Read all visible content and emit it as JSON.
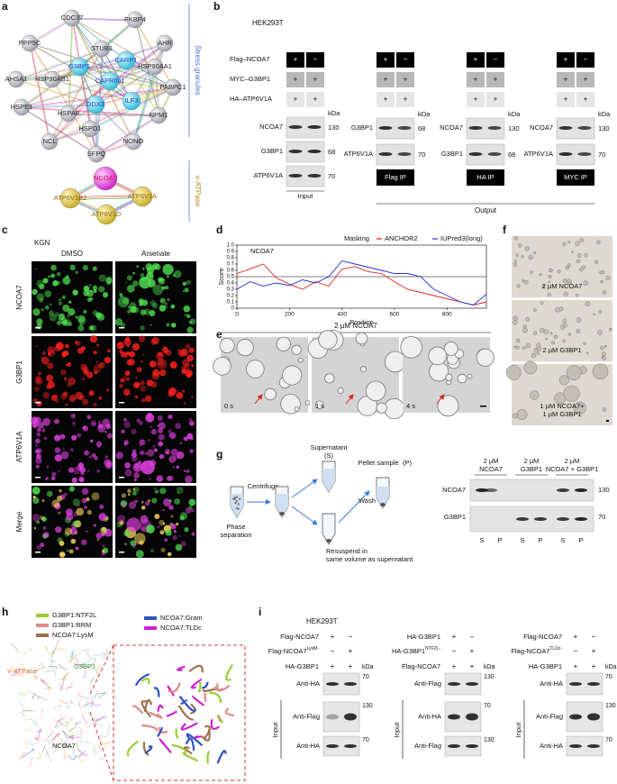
{
  "a": {
    "label": "a",
    "nodes": [
      "CDC37",
      "FKBP4",
      "PPP5C",
      "STUB1",
      "AHR",
      "G3BP1",
      "CARP1",
      "HSP90AA1",
      "AHSA1",
      "HSP90AB1",
      "CAPRIN1",
      "PABPC1",
      "HSPE1",
      "DDX3",
      "ILF3",
      "HSPA8",
      "NPM1",
      "HSPD1",
      "NCL",
      "NONO",
      "SFPQ",
      "NCOA7",
      "ATP6V1B2",
      "ATP6V1A",
      "ATP6V1D"
    ],
    "groups": [
      "Stress granules",
      "v-ATPase"
    ]
  },
  "b": {
    "label": "b",
    "cell_line": "HEK293T",
    "constructs": [
      "Flag–NCOA7",
      "MYC–G3BP1",
      "HA–ATP6V1A"
    ],
    "signs": [
      [
        "+",
        "−"
      ],
      [
        "+",
        "+"
      ],
      [
        "+",
        "+"
      ]
    ],
    "kda": "kDa",
    "blots": [
      {
        "name": "Input",
        "proteins": [
          "NCOA7",
          "G3BP1",
          "ATP6V1A"
        ],
        "sizes": [
          130,
          68,
          70
        ]
      },
      {
        "name": "Flag IP",
        "proteins": [
          "G3BP1",
          "ATP6V1A"
        ],
        "sizes": [
          68,
          70
        ]
      },
      {
        "name": "HA IP",
        "proteins": [
          "NCOA7",
          "G3BP1"
        ],
        "sizes": [
          130,
          68
        ]
      },
      {
        "name": "MYC IP",
        "proteins": [
          "NCOA7",
          "ATP6V1A"
        ],
        "sizes": [
          130,
          70
        ]
      }
    ],
    "output": "Output"
  },
  "c": {
    "label": "c",
    "cell_line": "KGN",
    "conditions": [
      "DMSO",
      "Arsenate"
    ],
    "channels": [
      "NCOA7",
      "G3BP1",
      "ATP6V1A",
      "Merge"
    ]
  },
  "d": {
    "label": "d",
    "type": "line",
    "protein": "NCOA7",
    "legend_title": "Masking",
    "xlabel": "Position",
    "ylabel": "Score",
    "x": [
      0,
      50,
      100,
      150,
      200,
      250,
      300,
      350,
      400,
      450,
      500,
      550,
      600,
      650,
      700,
      750,
      800,
      850,
      900,
      950
    ],
    "series": [
      {
        "name": "ANCHOR2",
        "color": "#e0201c",
        "values": [
          0.55,
          0.62,
          0.7,
          0.48,
          0.38,
          0.3,
          0.42,
          0.35,
          0.62,
          0.66,
          0.58,
          0.55,
          0.42,
          0.3,
          0.25,
          0.2,
          0.15,
          0.1,
          0.05,
          0.1
        ]
      },
      {
        "name": "IUPred3(long)",
        "color": "#1f2fd0",
        "values": [
          0.3,
          0.42,
          0.35,
          0.4,
          0.36,
          0.45,
          0.4,
          0.5,
          0.75,
          0.7,
          0.65,
          0.6,
          0.55,
          0.55,
          0.5,
          0.3,
          0.2,
          0.1,
          0.05,
          0.22
        ]
      }
    ],
    "threshold": 0.5,
    "xlim": [
      0,
      950
    ],
    "ylim": [
      0,
      1.0
    ],
    "xticks": [
      0,
      200,
      400,
      600,
      800
    ],
    "yticks": [
      0,
      0.1,
      0.2,
      0.3,
      0.4,
      0.5,
      0.6,
      0.7,
      0.8,
      0.9,
      {
        "value": 1.0,
        "label": "1.0"
      }
    ]
  },
  "e": {
    "label": "e",
    "title": "2 µM NCOA7",
    "times": [
      "0 s",
      "1 s",
      "4 s"
    ]
  },
  "f": {
    "label": "f",
    "conditions": [
      [
        "2 µM NCOA7"
      ],
      [
        "2 µM G3BP1"
      ],
      [
        "1 µM NCOA7+",
        "1 µM G3BP1"
      ]
    ]
  },
  "g": {
    "label": "g",
    "steps": {
      "centrifuge": "Centrifuge",
      "phase": [
        "Phase",
        "separation"
      ],
      "supernatant": "Supernatant",
      "s": "(S)",
      "wash": "Wash",
      "pellet": "Pellet sample",
      "p": "(P)",
      "resuspend": [
        "Resuspend in",
        "same volume as supernatant"
      ]
    },
    "headers": [
      [
        "2 µM",
        "NCOA7"
      ],
      [
        "2 µM",
        "G3BP1"
      ],
      [
        "2 µM",
        "NCOA7 + G3BP1"
      ]
    ],
    "proteins": [
      "NCOA7",
      "G3BP1"
    ],
    "sizes": [
      130,
      70
    ],
    "fractions": [
      "S",
      "P"
    ]
  },
  "h": {
    "label": "h",
    "legend": [
      {
        "name": "G3BP1:NTF2L",
        "color": "#9acd32"
      },
      {
        "name": "G3BP1:RRM",
        "color": "#e08a8a"
      },
      {
        "name": "NCOA7:LysM",
        "color": "#a0704a"
      },
      {
        "name": "NCOA7:Gram",
        "color": "#3050c0"
      },
      {
        "name": "NCOA7:TLDc",
        "color": "#d020d0"
      }
    ],
    "labels": [
      "V-ATPase",
      "G3BP1",
      "NCOA7"
    ]
  },
  "i": {
    "label": "i",
    "cell_line": "HEK293T",
    "kda": "kDa",
    "input": "Input",
    "groups": [
      {
        "rows": [
          {
            "text": "Flag-NCOA7",
            "signs": [
              "+",
              "−"
            ]
          },
          {
            "text": "Flag-NCOA7",
            "sup": "LysM-",
            "signs": [
              "−",
              "+"
            ]
          },
          {
            "text": "HA-G3BP1",
            "signs": [
              "+",
              "+"
            ]
          }
        ],
        "blots": [
          {
            "antibody": "Anti-HA",
            "size": 70
          },
          {
            "antibody": "Anti-Flag",
            "size": 130
          },
          {
            "antibody": "Anti-HA",
            "size": 70
          }
        ]
      },
      {
        "rows": [
          {
            "text": "HA-G3BP1",
            "signs": [
              "+",
              "−"
            ]
          },
          {
            "text": "HA-G3BP1",
            "sup": "NTF2L-",
            "signs": [
              "−",
              "+"
            ]
          },
          {
            "text": "Flag-NCOA7",
            "signs": [
              "+",
              "+"
            ]
          }
        ],
        "blots": [
          {
            "antibody": "Anti-Flag",
            "size": 130
          },
          {
            "antibody": "Anti-HA",
            "size": 70
          },
          {
            "antibody": "Anti-Flag",
            "size": 130
          }
        ]
      },
      {
        "rows": [
          {
            "text": "Flag-NCOA7",
            "signs": [
              "+",
              "−"
            ]
          },
          {
            "text": "Flag-NCOA7",
            "sup": "TLDc-",
            "signs": [
              "−",
              "+"
            ]
          },
          {
            "text": "HA-G3BP1",
            "signs": [
              "+",
              "+"
            ]
          }
        ],
        "blots": [
          {
            "antibody": "Anti-HA",
            "size": 70
          },
          {
            "antibody": "Anti-Flag",
            "size": 130
          },
          {
            "antibody": "Anti-HA",
            "size": 70
          }
        ]
      }
    ]
  }
}
